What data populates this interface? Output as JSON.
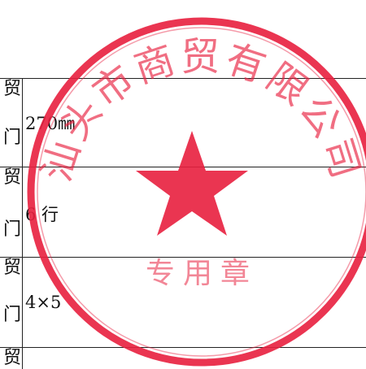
{
  "table": {
    "rows": [
      {
        "label_top": "贸",
        "label_bottom": "门",
        "value": "270㎜"
      },
      {
        "label_top": "贸",
        "label_bottom": "门",
        "value": "6 行"
      },
      {
        "label_top": "贸",
        "label_bottom": "门",
        "value": "4×5"
      },
      {
        "label_top": "贸",
        "label_bottom": "",
        "value": ""
      }
    ]
  },
  "stamp": {
    "ring_text": "汕头市商贸有限公司",
    "inner_text": "专用章",
    "color": "#e8203f"
  }
}
